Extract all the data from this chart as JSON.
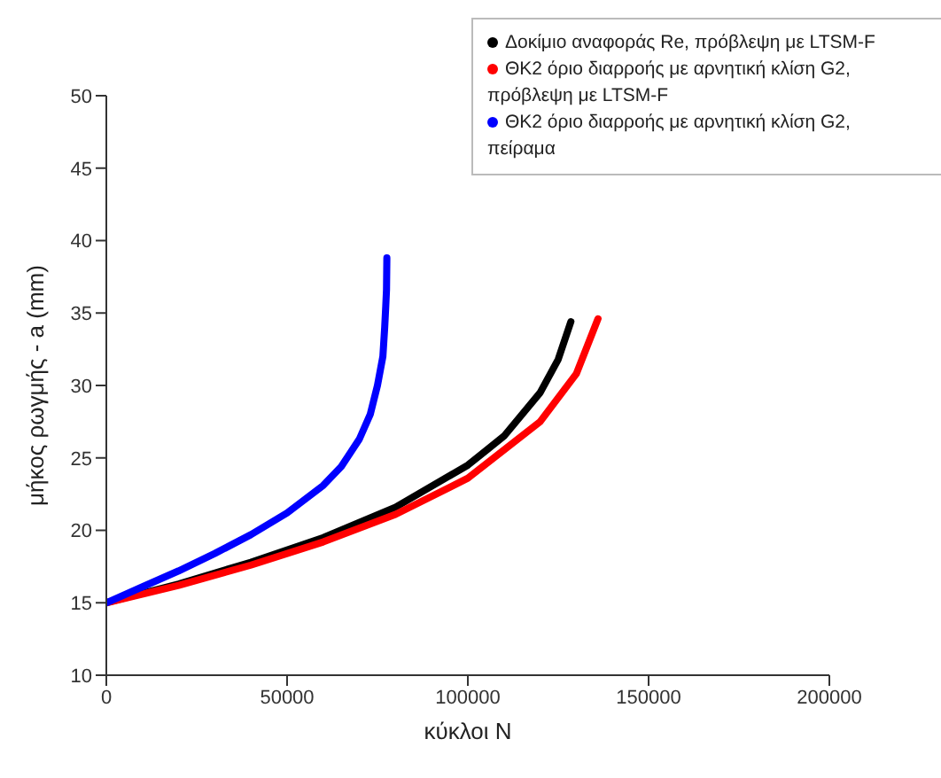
{
  "chart_data": {
    "type": "line",
    "xlabel": "κύκλοι N",
    "ylabel": "μήκος ρωγμής - a (mm)",
    "xlim": [
      0,
      200000
    ],
    "xticks": [
      0,
      50000,
      100000,
      150000,
      200000
    ],
    "ylim": [
      10,
      50
    ],
    "yticks": [
      10,
      15,
      20,
      25,
      30,
      35,
      40,
      45,
      50
    ],
    "legend": "top right",
    "marker": "none",
    "line_style": "solid",
    "grid": false,
    "series": [
      {
        "name": "Δοκίμιο αναφοράς Re, πρόβλεψη με LTSM-F",
        "color": "#000000",
        "x": [
          0,
          20000,
          40000,
          60000,
          80000,
          100000,
          110000,
          120000,
          125000,
          128500
        ],
        "values": [
          15,
          16.3,
          17.8,
          19.5,
          21.6,
          24.5,
          26.5,
          29.5,
          31.8,
          34.4
        ]
      },
      {
        "name": "ΘΚ2 όριο διαρροής με αρνητική κλίση G2, πρόβλεψη με LTSM-F",
        "color": "#ff0000",
        "x": [
          0,
          20000,
          40000,
          60000,
          80000,
          100000,
          120000,
          130000,
          136000
        ],
        "values": [
          15,
          16.2,
          17.6,
          19.2,
          21.1,
          23.6,
          27.5,
          30.8,
          34.6
        ]
      },
      {
        "name": "ΘΚ2 όριο διαρροής με αρνητική κλίση G2, πείραμα",
        "color": "#0000ff",
        "x": [
          0,
          10000,
          20000,
          30000,
          40000,
          50000,
          60000,
          65000,
          70000,
          73000,
          75000,
          76500,
          77000,
          77300,
          77500,
          77600
        ],
        "values": [
          15,
          16.1,
          17.2,
          18.4,
          19.7,
          21.2,
          23.1,
          24.4,
          26.3,
          28,
          30,
          32,
          34,
          35.5,
          36.6,
          38.8
        ]
      }
    ]
  }
}
